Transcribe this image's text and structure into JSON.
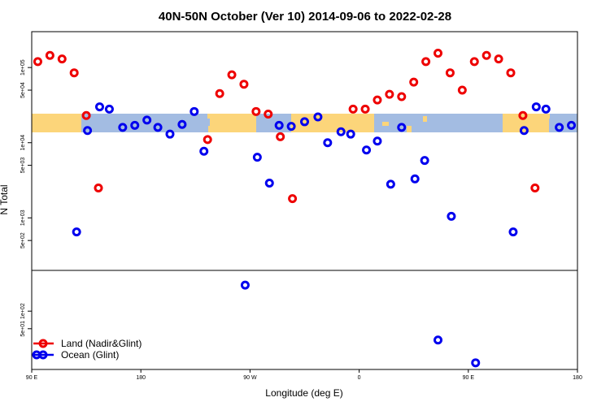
{
  "chart_data": {
    "type": "scatter",
    "title": "40N-50N October (Ver 10)   2014-09-06 to 2022-02-28",
    "xlabel": "Longitude (deg E)",
    "ylabel": "N Total",
    "x_ticks": [
      "90 E",
      "180",
      "90 W",
      "0",
      "90 E",
      "180"
    ],
    "xlim": [
      90,
      540
    ],
    "y_scale": "log",
    "upper_panel": {
      "ylim": [
        200,
        300000
      ],
      "y_ticks": [
        {
          "value": 100000,
          "label": "1e+05"
        },
        {
          "value": 50000,
          "label": "5e+04"
        },
        {
          "value": 10000,
          "label": "1e+04"
        },
        {
          "value": 5000,
          "label": "5e+03"
        },
        {
          "value": 1000,
          "label": "1e+03"
        },
        {
          "value": 500,
          "label": "5e+02"
        }
      ]
    },
    "lower_panel": {
      "ylim": [
        10,
        500
      ],
      "y_ticks": [
        {
          "value": 100,
          "label": "1e+02"
        },
        {
          "value": 50,
          "label": "5e+01"
        }
      ]
    },
    "series": [
      {
        "name": "Land (Nadir&Glint)",
        "color": "#ee0000",
        "points": [
          {
            "lon": 95,
            "n": 120000,
            "panel": "upper"
          },
          {
            "lon": 105,
            "n": 145000,
            "panel": "upper"
          },
          {
            "lon": 115,
            "n": 130000,
            "panel": "upper"
          },
          {
            "lon": 125,
            "n": 85000,
            "panel": "upper"
          },
          {
            "lon": 135,
            "n": 23000,
            "panel": "upper"
          },
          {
            "lon": 145,
            "n": 2500,
            "panel": "upper"
          },
          {
            "lon": 235,
            "n": 11000,
            "panel": "upper"
          },
          {
            "lon": 245,
            "n": 45000,
            "panel": "upper"
          },
          {
            "lon": 255,
            "n": 80000,
            "panel": "upper"
          },
          {
            "lon": 265,
            "n": 60000,
            "panel": "upper"
          },
          {
            "lon": 275,
            "n": 26000,
            "panel": "upper"
          },
          {
            "lon": 285,
            "n": 24000,
            "panel": "upper"
          },
          {
            "lon": 295,
            "n": 12000,
            "panel": "upper"
          },
          {
            "lon": 305,
            "n": 1800,
            "panel": "upper"
          },
          {
            "lon": 355,
            "n": 28000,
            "panel": "upper"
          },
          {
            "lon": 365,
            "n": 28000,
            "panel": "upper"
          },
          {
            "lon": 375,
            "n": 37000,
            "panel": "upper"
          },
          {
            "lon": 385,
            "n": 44000,
            "panel": "upper"
          },
          {
            "lon": 395,
            "n": 41000,
            "panel": "upper"
          },
          {
            "lon": 405,
            "n": 64000,
            "panel": "upper"
          },
          {
            "lon": 415,
            "n": 120000,
            "panel": "upper"
          },
          {
            "lon": 425,
            "n": 155000,
            "panel": "upper"
          },
          {
            "lon": 435,
            "n": 85000,
            "panel": "upper"
          },
          {
            "lon": 445,
            "n": 50000,
            "panel": "upper"
          },
          {
            "lon": 455,
            "n": 120000,
            "panel": "upper"
          },
          {
            "lon": 465,
            "n": 145000,
            "panel": "upper"
          },
          {
            "lon": 475,
            "n": 130000,
            "panel": "upper"
          },
          {
            "lon": 485,
            "n": 85000,
            "panel": "upper"
          },
          {
            "lon": 495,
            "n": 23000,
            "panel": "upper"
          },
          {
            "lon": 505,
            "n": 2500,
            "panel": "upper"
          }
        ]
      },
      {
        "name": "Ocean (Glint)",
        "color": "#0000ee",
        "points": [
          {
            "lon": 127,
            "n": 650,
            "panel": "upper"
          },
          {
            "lon": 136,
            "n": 14500,
            "panel": "upper"
          },
          {
            "lon": 146,
            "n": 30000,
            "panel": "upper"
          },
          {
            "lon": 154,
            "n": 28000,
            "panel": "upper"
          },
          {
            "lon": 165,
            "n": 16000,
            "panel": "upper"
          },
          {
            "lon": 175,
            "n": 17000,
            "panel": "upper"
          },
          {
            "lon": 185,
            "n": 20000,
            "panel": "upper"
          },
          {
            "lon": 194,
            "n": 16000,
            "panel": "upper"
          },
          {
            "lon": 204,
            "n": 13000,
            "panel": "upper"
          },
          {
            "lon": 214,
            "n": 17500,
            "panel": "upper"
          },
          {
            "lon": 224,
            "n": 26000,
            "panel": "upper"
          },
          {
            "lon": 232,
            "n": 7700,
            "panel": "upper"
          },
          {
            "lon": 266,
            "n": 280,
            "panel": "lower"
          },
          {
            "lon": 276,
            "n": 6400,
            "panel": "upper"
          },
          {
            "lon": 286,
            "n": 2900,
            "panel": "upper"
          },
          {
            "lon": 294,
            "n": 17000,
            "panel": "upper"
          },
          {
            "lon": 304,
            "n": 16500,
            "panel": "upper"
          },
          {
            "lon": 315,
            "n": 19000,
            "panel": "upper"
          },
          {
            "lon": 326,
            "n": 22000,
            "panel": "upper"
          },
          {
            "lon": 334,
            "n": 10000,
            "panel": "upper"
          },
          {
            "lon": 345,
            "n": 14000,
            "panel": "upper"
          },
          {
            "lon": 353,
            "n": 13000,
            "panel": "upper"
          },
          {
            "lon": 366,
            "n": 8000,
            "panel": "upper"
          },
          {
            "lon": 375,
            "n": 10500,
            "panel": "upper"
          },
          {
            "lon": 386,
            "n": 2800,
            "panel": "upper"
          },
          {
            "lon": 395,
            "n": 16000,
            "panel": "upper"
          },
          {
            "lon": 406,
            "n": 3300,
            "panel": "upper"
          },
          {
            "lon": 414,
            "n": 5800,
            "panel": "upper"
          },
          {
            "lon": 425,
            "n": 32,
            "panel": "lower"
          },
          {
            "lon": 436,
            "n": 1050,
            "panel": "upper"
          },
          {
            "lon": 456,
            "n": 13,
            "panel": "lower"
          },
          {
            "lon": 487,
            "n": 650,
            "panel": "upper"
          },
          {
            "lon": 496,
            "n": 14500,
            "panel": "upper"
          },
          {
            "lon": 506,
            "n": 30000,
            "panel": "upper"
          },
          {
            "lon": 514,
            "n": 28000,
            "panel": "upper"
          },
          {
            "lon": 525,
            "n": 16000,
            "panel": "upper"
          },
          {
            "lon": 535,
            "n": 17000,
            "panel": "upper"
          }
        ]
      }
    ],
    "legend": {
      "placement": "bottom-left",
      "entries": [
        "Land (Nadir&Glint)",
        "Ocean (Glint)"
      ]
    },
    "background_map": {
      "band_center_n": 18500,
      "land_color": "#fcd57a",
      "ocean_color": "#a3bce2"
    }
  }
}
